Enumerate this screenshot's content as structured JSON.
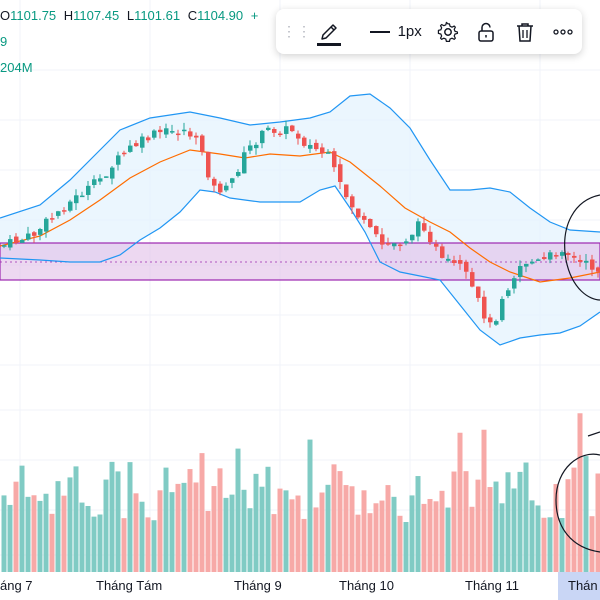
{
  "legend": {
    "o_key": "O",
    "o_val": "1101.75",
    "h_key": "H",
    "h_val": "1107.45",
    "l_key": "L",
    "l_val": "1101.61",
    "c_key": "C",
    "c_val": "1104.90",
    "change": "+",
    "indicator_line1": "9",
    "indicator_line2": "204M"
  },
  "toolbar": {
    "grip_icon": "drag-handle-icon",
    "pencil_icon": "pencil-icon",
    "line_width_label": "1px",
    "icons": [
      "gear-icon",
      "unlock-icon",
      "trash-icon",
      "more-icon"
    ]
  },
  "x_axis": {
    "labels": [
      "áng 7",
      "Tháng Tám",
      "Tháng 9",
      "Tháng 10",
      "Tháng 11",
      "Thán"
    ]
  },
  "colors": {
    "up": "#26a69a",
    "down": "#ef5350",
    "band_line": "#2196f3",
    "band_fill": "#e3f2fd",
    "basis": "#ff6d00",
    "rect_fill": "#e1bee7",
    "rect_border": "#9c27b0"
  }
}
